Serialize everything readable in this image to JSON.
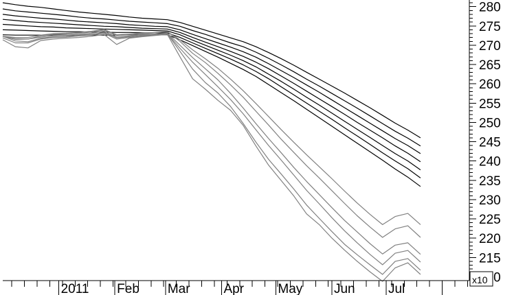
{
  "chart_data": {
    "type": "line",
    "title": "",
    "xlabel": "",
    "ylabel": "",
    "x_tick_labels": [
      "2011",
      "Feb",
      "Mar",
      "Apr",
      "May",
      "Jun",
      "Jul"
    ],
    "y_ticks": [
      210,
      215,
      220,
      225,
      230,
      235,
      240,
      245,
      250,
      255,
      260,
      265,
      270,
      275,
      280
    ],
    "y_multiplier_label": "x10",
    "ylim": [
      209,
      281
    ],
    "x_range": [
      "2010-12-01",
      "2011-08-16"
    ],
    "y_axis_side": "right",
    "grid": false,
    "legend": "none",
    "series_colors": {
      "upper": "#000000",
      "lower": "#808080"
    },
    "x": [
      "2010-12-01",
      "2010-12-08",
      "2010-12-15",
      "2010-12-22",
      "2010-12-29",
      "2011-01-05",
      "2011-01-12",
      "2011-01-19",
      "2011-01-26",
      "2011-02-02",
      "2011-02-09",
      "2011-02-16",
      "2011-02-23",
      "2011-03-02",
      "2011-03-09",
      "2011-03-16",
      "2011-03-23",
      "2011-03-30",
      "2011-04-06",
      "2011-04-13",
      "2011-04-20",
      "2011-04-27",
      "2011-05-04",
      "2011-05-11",
      "2011-05-18",
      "2011-05-25",
      "2011-06-01",
      "2011-06-08",
      "2011-06-15",
      "2011-06-22",
      "2011-06-29",
      "2011-07-06",
      "2011-07-13",
      "2011-07-20"
    ],
    "series": [
      {
        "group": "upper",
        "values": [
          281.0,
          280.5,
          280.1,
          279.8,
          279.4,
          279.0,
          278.6,
          278.3,
          278.0,
          277.7,
          277.3,
          277.0,
          276.8,
          276.6,
          275.9,
          274.9,
          273.9,
          272.9,
          271.9,
          270.9,
          269.6,
          268.1,
          266.5,
          264.8,
          263.0,
          261.2,
          259.4,
          257.6,
          255.7,
          253.8,
          251.8,
          249.8,
          248.0,
          246.0
        ]
      },
      {
        "group": "upper",
        "values": [
          279.4,
          278.9,
          278.6,
          278.3,
          278.0,
          277.7,
          277.3,
          277.0,
          276.8,
          276.5,
          276.2,
          276.0,
          275.8,
          275.6,
          274.9,
          273.8,
          272.8,
          271.7,
          270.6,
          269.6,
          268.2,
          266.6,
          264.9,
          263.1,
          261.2,
          259.4,
          257.5,
          255.6,
          253.7,
          251.7,
          249.7,
          247.7,
          245.9,
          243.9
        ]
      },
      {
        "group": "upper",
        "values": [
          278.0,
          277.6,
          277.3,
          277.0,
          276.8,
          276.5,
          276.2,
          276.0,
          275.8,
          275.6,
          275.3,
          275.1,
          274.9,
          274.8,
          274.0,
          272.8,
          271.7,
          270.6,
          269.5,
          268.3,
          266.9,
          265.2,
          263.4,
          261.6,
          259.7,
          257.8,
          255.8,
          253.8,
          251.8,
          249.8,
          247.8,
          245.8,
          244.0,
          241.9
        ]
      },
      {
        "group": "upper",
        "values": [
          276.7,
          276.4,
          276.1,
          275.9,
          275.7,
          275.5,
          275.3,
          275.1,
          274.9,
          274.8,
          274.6,
          274.4,
          274.3,
          274.2,
          273.3,
          272.0,
          270.8,
          269.6,
          268.4,
          267.1,
          265.6,
          263.9,
          262.0,
          260.1,
          258.1,
          256.1,
          254.1,
          252.1,
          250.0,
          248.0,
          246.0,
          243.9,
          242.0,
          239.8
        ]
      },
      {
        "group": "upper",
        "values": [
          275.4,
          275.2,
          275.0,
          274.8,
          274.7,
          274.5,
          274.4,
          274.3,
          274.2,
          274.1,
          274.0,
          273.9,
          273.8,
          273.7,
          272.7,
          271.3,
          270.0,
          268.7,
          267.4,
          266.0,
          264.4,
          262.5,
          260.6,
          258.6,
          256.5,
          254.5,
          252.4,
          250.3,
          248.2,
          246.1,
          244.0,
          241.9,
          240.0,
          237.7
        ]
      },
      {
        "group": "upper",
        "values": [
          274.0,
          273.9,
          273.8,
          273.7,
          273.6,
          273.5,
          273.5,
          273.4,
          273.4,
          273.3,
          273.3,
          273.2,
          273.2,
          273.2,
          272.0,
          270.6,
          269.2,
          267.8,
          266.4,
          264.9,
          263.2,
          261.3,
          259.2,
          257.1,
          255.0,
          252.9,
          250.8,
          248.6,
          246.5,
          244.3,
          242.1,
          240.0,
          238.0,
          235.6
        ]
      },
      {
        "group": "upper",
        "values": [
          272.7,
          272.6,
          272.6,
          272.6,
          272.6,
          272.6,
          272.6,
          272.6,
          272.6,
          272.6,
          272.7,
          272.7,
          272.7,
          272.7,
          271.4,
          269.9,
          268.4,
          266.9,
          265.3,
          263.7,
          261.9,
          259.8,
          257.7,
          255.6,
          253.4,
          251.2,
          249.0,
          246.8,
          244.6,
          242.4,
          240.2,
          237.9,
          235.8,
          233.4
        ]
      },
      {
        "group": "lower",
        "values": [
          272.3,
          271.5,
          271.6,
          272.4,
          272.8,
          272.9,
          273.1,
          273.4,
          273.9,
          272.5,
          272.7,
          272.9,
          273.2,
          273.5,
          271.0,
          267.9,
          265.5,
          262.7,
          259.7,
          256.5,
          252.9,
          249.3,
          245.6,
          242.2,
          238.8,
          235.6,
          232.3,
          229.0,
          225.8,
          222.9,
          220.2,
          222.4,
          223.2,
          220.2
        ]
      },
      {
        "group": "lower",
        "values": [
          272.3,
          271.7,
          271.6,
          272.1,
          272.5,
          272.6,
          272.8,
          273.1,
          273.6,
          272.1,
          272.4,
          272.7,
          272.9,
          273.1,
          270.0,
          266.8,
          263.9,
          261.0,
          257.5,
          253.7,
          249.7,
          245.8,
          242.1,
          238.3,
          234.7,
          231.3,
          227.9,
          224.6,
          221.6,
          218.6,
          215.9,
          218.2,
          218.8,
          215.8
        ]
      },
      {
        "group": "lower",
        "values": [
          272.3,
          271.1,
          270.9,
          271.8,
          272.2,
          272.3,
          272.6,
          272.8,
          273.3,
          271.9,
          272.2,
          272.5,
          272.8,
          273.0,
          269.2,
          265.6,
          262.4,
          259.2,
          255.9,
          252.2,
          248.1,
          244.0,
          240.2,
          236.3,
          232.4,
          228.9,
          225.3,
          221.9,
          218.8,
          215.8,
          213.1,
          216.1,
          216.8,
          213.8
        ]
      },
      {
        "group": "lower",
        "values": [
          272.3,
          272.0,
          272.0,
          272.6,
          273.0,
          273.1,
          273.3,
          273.6,
          274.1,
          272.7,
          272.9,
          273.1,
          273.3,
          273.5,
          271.4,
          268.8,
          266.5,
          264.0,
          261.2,
          258.2,
          254.9,
          251.5,
          248.1,
          244.8,
          241.6,
          238.5,
          235.4,
          232.2,
          229.1,
          226.2,
          223.5,
          225.6,
          226.4,
          223.5
        ]
      },
      {
        "group": "lower",
        "values": [
          271.9,
          270.6,
          270.6,
          271.6,
          272.0,
          272.1,
          272.4,
          272.6,
          273.1,
          271.6,
          272.0,
          272.3,
          272.7,
          273.0,
          268.4,
          263.8,
          260.3,
          257.6,
          254.1,
          249.7,
          244.9,
          240.4,
          236.6,
          232.7,
          228.6,
          225.1,
          221.7,
          218.4,
          215.7,
          213.1,
          210.6,
          214.0,
          214.7,
          211.7
        ]
      },
      {
        "group": "lower",
        "values": [
          271.4,
          269.6,
          269.3,
          271.2,
          271.6,
          271.8,
          272.0,
          272.3,
          272.8,
          270.2,
          271.8,
          272.2,
          272.5,
          272.8,
          267.0,
          261.3,
          258.6,
          255.7,
          253.1,
          249.2,
          243.9,
          238.9,
          234.9,
          230.9,
          226.3,
          223.5,
          220.0,
          216.9,
          214.0,
          211.3,
          208.8,
          212.3,
          213.6,
          210.6
        ]
      }
    ]
  }
}
